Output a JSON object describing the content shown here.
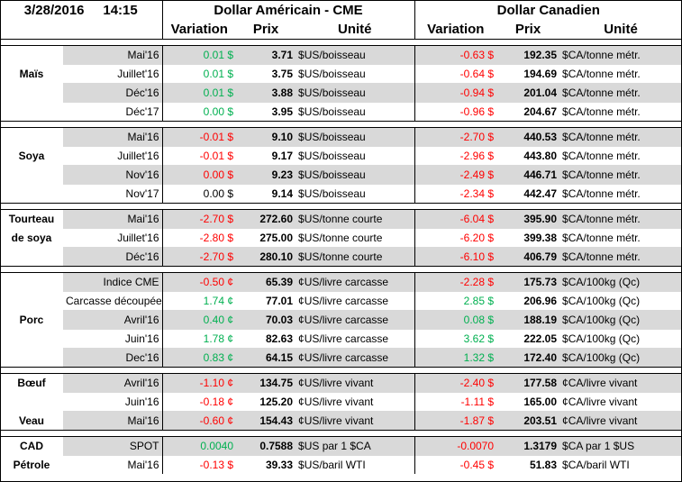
{
  "header": {
    "date": "3/28/2016",
    "time": "14:15",
    "us_title": "Dollar Américain - CME",
    "ca_title": "Dollar Canadien",
    "col_variation": "Variation",
    "col_prix": "Prix",
    "col_unite": "Unité"
  },
  "colors": {
    "negative": "#ff0000",
    "positive": "#00b050",
    "band": "#d9d9d9"
  },
  "groups": [
    {
      "label": "Maïs",
      "rows": [
        {
          "contract": "Mai'16",
          "us_var": "0.01 $",
          "us_sign": "pos",
          "us_price": "3.71",
          "us_unit": "$US/boisseau",
          "ca_var": "-0.63 $",
          "ca_sign": "neg",
          "ca_price": "192.35",
          "ca_unit": "$CA/tonne métr."
        },
        {
          "contract": "Juillet'16",
          "us_var": "0.01 $",
          "us_sign": "pos",
          "us_price": "3.75",
          "us_unit": "$US/boisseau",
          "ca_var": "-0.64 $",
          "ca_sign": "neg",
          "ca_price": "194.69",
          "ca_unit": "$CA/tonne métr."
        },
        {
          "contract": "Déc'16",
          "us_var": "0.01 $",
          "us_sign": "pos",
          "us_price": "3.88",
          "us_unit": "$US/boisseau",
          "ca_var": "-0.94 $",
          "ca_sign": "neg",
          "ca_price": "201.04",
          "ca_unit": "$CA/tonne métr."
        },
        {
          "contract": "Déc'17",
          "us_var": "0.00 $",
          "us_sign": "pos",
          "us_price": "3.95",
          "us_unit": "$US/boisseau",
          "ca_var": "-0.96 $",
          "ca_sign": "neg",
          "ca_price": "204.67",
          "ca_unit": "$CA/tonne métr."
        }
      ]
    },
    {
      "label": "Soya",
      "rows": [
        {
          "contract": "Mai'16",
          "us_var": "-0.01 $",
          "us_sign": "neg",
          "us_price": "9.10",
          "us_unit": "$US/boisseau",
          "ca_var": "-2.70 $",
          "ca_sign": "neg",
          "ca_price": "440.53",
          "ca_unit": "$CA/tonne métr."
        },
        {
          "contract": "Juillet'16",
          "us_var": "-0.01 $",
          "us_sign": "neg",
          "us_price": "9.17",
          "us_unit": "$US/boisseau",
          "ca_var": "-2.96 $",
          "ca_sign": "neg",
          "ca_price": "443.80",
          "ca_unit": "$CA/tonne métr."
        },
        {
          "contract": "Nov'16",
          "us_var": "0.00 $",
          "us_sign": "neg",
          "us_price": "9.23",
          "us_unit": "$US/boisseau",
          "ca_var": "-2.49 $",
          "ca_sign": "neg",
          "ca_price": "446.71",
          "ca_unit": "$CA/tonne métr."
        },
        {
          "contract": "Nov'17",
          "us_var": "0.00 $",
          "us_sign": "zero",
          "us_price": "9.14",
          "us_unit": "$US/boisseau",
          "ca_var": "-2.34 $",
          "ca_sign": "neg",
          "ca_price": "442.47",
          "ca_unit": "$CA/tonne métr."
        }
      ]
    },
    {
      "label": "Tourteau de soya",
      "label_lines": [
        "Tourteau",
        "de soya"
      ],
      "rows": [
        {
          "contract": "Mai'16",
          "us_var": "-2.70 $",
          "us_sign": "neg",
          "us_price": "272.60",
          "us_unit": "$US/tonne courte",
          "ca_var": "-6.04 $",
          "ca_sign": "neg",
          "ca_price": "395.90",
          "ca_unit": "$CA/tonne métr."
        },
        {
          "contract": "Juillet'16",
          "us_var": "-2.80 $",
          "us_sign": "neg",
          "us_price": "275.00",
          "us_unit": "$US/tonne courte",
          "ca_var": "-6.20 $",
          "ca_sign": "neg",
          "ca_price": "399.38",
          "ca_unit": "$CA/tonne métr."
        },
        {
          "contract": "Déc'16",
          "us_var": "-2.70 $",
          "us_sign": "neg",
          "us_price": "280.10",
          "us_unit": "$US/tonne courte",
          "ca_var": "-6.10 $",
          "ca_sign": "neg",
          "ca_price": "406.79",
          "ca_unit": "$CA/tonne métr."
        }
      ]
    },
    {
      "label": "Porc",
      "rows": [
        {
          "contract": "Indice CME",
          "us_var": "-0.50 ¢",
          "us_sign": "neg",
          "us_price": "65.39",
          "us_unit": "¢US/livre carcasse",
          "ca_var": "-2.28 $",
          "ca_sign": "neg",
          "ca_price": "175.73",
          "ca_unit": "$CA/100kg (Qc)"
        },
        {
          "contract": "Carcasse découpée",
          "us_var": "1.74 ¢",
          "us_sign": "pos",
          "us_price": "77.01",
          "us_unit": "¢US/livre carcasse",
          "ca_var": "2.85 $",
          "ca_sign": "pos",
          "ca_price": "206.96",
          "ca_unit": "$CA/100kg (Qc)"
        },
        {
          "contract": "Avril'16",
          "us_var": "0.40 ¢",
          "us_sign": "pos",
          "us_price": "70.03",
          "us_unit": "¢US/livre carcasse",
          "ca_var": "0.08 $",
          "ca_sign": "pos",
          "ca_price": "188.19",
          "ca_unit": "$CA/100kg (Qc)"
        },
        {
          "contract": "Juin'16",
          "us_var": "1.78 ¢",
          "us_sign": "pos",
          "us_price": "82.63",
          "us_unit": "¢US/livre carcasse",
          "ca_var": "3.62 $",
          "ca_sign": "pos",
          "ca_price": "222.05",
          "ca_unit": "$CA/100kg (Qc)"
        },
        {
          "contract": "Dec'16",
          "us_var": "0.83 ¢",
          "us_sign": "pos",
          "us_price": "64.15",
          "us_unit": "¢US/livre carcasse",
          "ca_var": "1.32 $",
          "ca_sign": "pos",
          "ca_price": "172.40",
          "ca_unit": "$CA/100kg (Qc)"
        }
      ]
    },
    {
      "label": "Bœuf",
      "rows": [
        {
          "contract": "Avril'16",
          "us_var": "-1.10 ¢",
          "us_sign": "neg",
          "us_price": "134.75",
          "us_unit": "¢US/livre vivant",
          "ca_var": "-2.40 $",
          "ca_sign": "neg",
          "ca_price": "177.58",
          "ca_unit": "¢CA/livre vivant"
        },
        {
          "contract": "Juin'16",
          "us_var": "-0.18 ¢",
          "us_sign": "neg",
          "us_price": "125.20",
          "us_unit": "¢US/livre vivant",
          "ca_var": "-1.11 $",
          "ca_sign": "neg",
          "ca_price": "165.00",
          "ca_unit": "¢CA/livre vivant"
        },
        {
          "contract": "Mai'16",
          "sub_label": "Veau",
          "us_var": "-0.60 ¢",
          "us_sign": "neg",
          "us_price": "154.43",
          "us_unit": "¢US/livre vivant",
          "ca_var": "-1.87 $",
          "ca_sign": "neg",
          "ca_price": "203.51",
          "ca_unit": "¢CA/livre vivant"
        }
      ]
    },
    {
      "label": "CAD",
      "rows": [
        {
          "label": "CAD",
          "contract": "SPOT",
          "us_var": "0.0040",
          "us_sign": "pos",
          "us_price": "0.7588",
          "us_unit": "$US par 1 $CA",
          "ca_var": "-0.0070",
          "ca_sign": "neg",
          "ca_price": "1.3179",
          "ca_unit": "$CA par 1 $US"
        },
        {
          "label": "Pétrole",
          "contract": "Mai'16",
          "us_var": "-0.13 $",
          "us_sign": "neg",
          "us_price": "39.33",
          "us_unit": "$US/baril WTI",
          "ca_var": "-0.45 $",
          "ca_sign": "neg",
          "ca_price": "51.83",
          "ca_unit": "$CA/baril WTI"
        }
      ]
    }
  ]
}
